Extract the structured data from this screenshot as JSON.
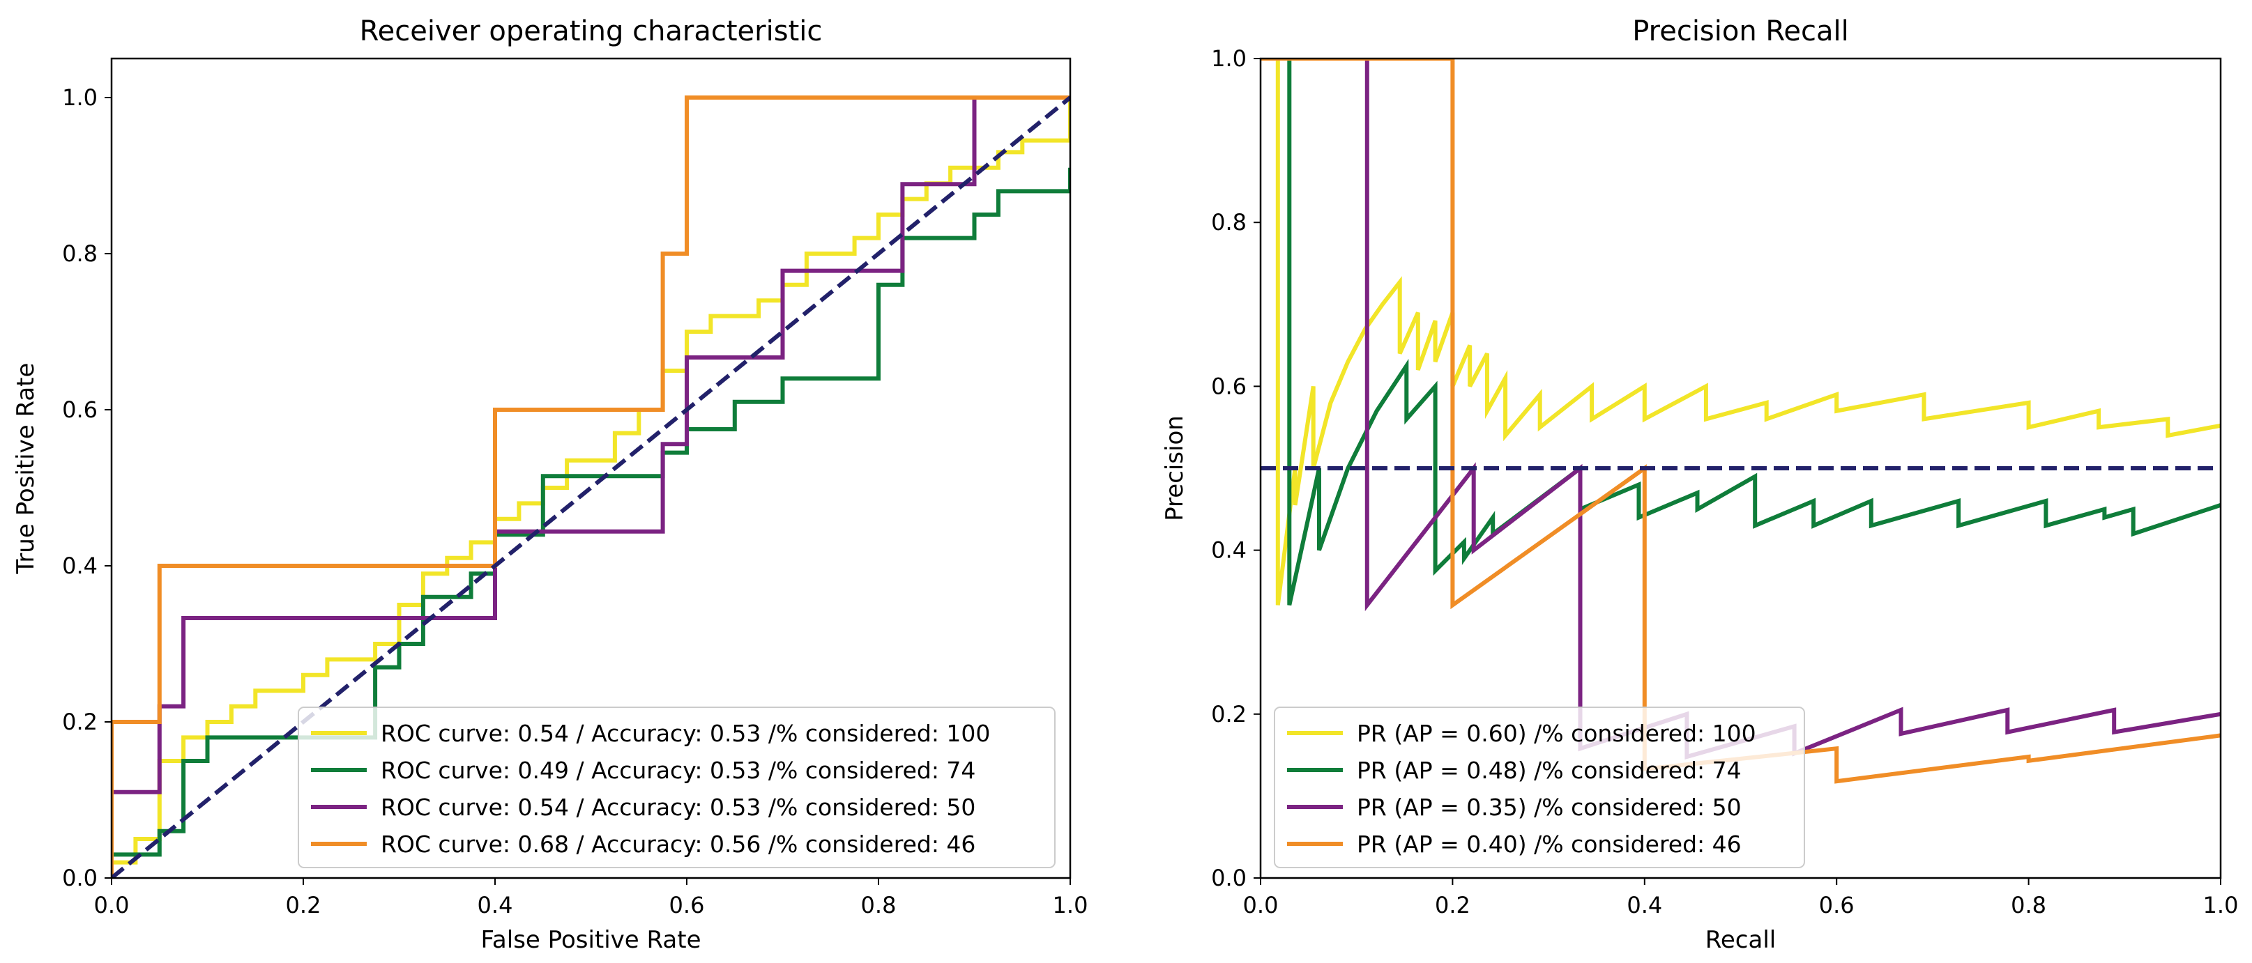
{
  "chart_data": [
    {
      "type": "line",
      "title": "Receiver operating characteristic",
      "xlabel": "False Positive Rate",
      "ylabel": "True Positive Rate",
      "xlim": [
        0,
        1
      ],
      "ylim": [
        0,
        1.05
      ],
      "xticks": [
        "0.0",
        "0.2",
        "0.4",
        "0.6",
        "0.8",
        "1.0"
      ],
      "yticks": [
        "0.0",
        "0.2",
        "0.4",
        "0.6",
        "0.8",
        "1.0"
      ],
      "legend_position": "lower-right",
      "series": [
        {
          "name": "ROC curve: 0.54 / Accuracy: 0.53 /% considered: 100",
          "color": "#f2e528",
          "x": [
            0,
            0,
            0.025,
            0.025,
            0.05,
            0.05,
            0.075,
            0.075,
            0.1,
            0.1,
            0.125,
            0.125,
            0.15,
            0.15,
            0.2,
            0.2,
            0.225,
            0.225,
            0.275,
            0.275,
            0.3,
            0.3,
            0.325,
            0.325,
            0.35,
            0.35,
            0.375,
            0.375,
            0.4,
            0.4,
            0.425,
            0.425,
            0.45,
            0.45,
            0.475,
            0.475,
            0.525,
            0.525,
            0.55,
            0.55,
            0.575,
            0.575,
            0.6,
            0.6,
            0.625,
            0.625,
            0.675,
            0.675,
            0.7,
            0.7,
            0.725,
            0.725,
            0.775,
            0.775,
            0.8,
            0.8,
            0.825,
            0.825,
            0.85,
            0.85,
            0.875,
            0.875,
            0.925,
            0.925,
            0.95,
            0.95,
            1.0,
            1.0
          ],
          "y": [
            0,
            0.02,
            0.02,
            0.05,
            0.05,
            0.15,
            0.15,
            0.18,
            0.18,
            0.2,
            0.2,
            0.22,
            0.22,
            0.24,
            0.24,
            0.26,
            0.26,
            0.28,
            0.28,
            0.3,
            0.3,
            0.35,
            0.35,
            0.39,
            0.39,
            0.41,
            0.41,
            0.43,
            0.43,
            0.46,
            0.46,
            0.48,
            0.48,
            0.5,
            0.5,
            0.535,
            0.535,
            0.57,
            0.57,
            0.6,
            0.6,
            0.65,
            0.65,
            0.7,
            0.7,
            0.72,
            0.72,
            0.74,
            0.74,
            0.76,
            0.76,
            0.8,
            0.8,
            0.82,
            0.82,
            0.85,
            0.85,
            0.87,
            0.87,
            0.89,
            0.89,
            0.91,
            0.91,
            0.93,
            0.93,
            0.945,
            0.945,
            1.0
          ]
        },
        {
          "name": "ROC curve: 0.49 / Accuracy: 0.53 /% considered: 74",
          "color": "#0f7d3a",
          "x": [
            0,
            0,
            0.05,
            0.05,
            0.075,
            0.075,
            0.1,
            0.1,
            0.275,
            0.275,
            0.3,
            0.3,
            0.325,
            0.325,
            0.375,
            0.375,
            0.4,
            0.4,
            0.45,
            0.45,
            0.575,
            0.575,
            0.6,
            0.6,
            0.65,
            0.65,
            0.7,
            0.7,
            0.8,
            0.8,
            0.825,
            0.825,
            0.9,
            0.9,
            0.925,
            0.925,
            1.0,
            1.0
          ],
          "y": [
            0,
            0.03,
            0.03,
            0.06,
            0.06,
            0.15,
            0.15,
            0.18,
            0.18,
            0.27,
            0.27,
            0.3,
            0.3,
            0.36,
            0.36,
            0.39,
            0.39,
            0.44,
            0.44,
            0.515,
            0.515,
            0.545,
            0.545,
            0.575,
            0.575,
            0.61,
            0.61,
            0.64,
            0.64,
            0.76,
            0.76,
            0.82,
            0.82,
            0.85,
            0.85,
            0.88,
            0.88,
            0.91
          ]
        },
        {
          "name": "ROC curve: 0.54 / Accuracy: 0.53 /% considered: 50",
          "color": "#7b2382",
          "x": [
            0,
            0,
            0.05,
            0.05,
            0.075,
            0.075,
            0.4,
            0.4,
            0.575,
            0.575,
            0.6,
            0.6,
            0.7,
            0.7,
            0.825,
            0.825,
            0.9,
            0.9,
            1.0
          ],
          "y": [
            0,
            0.11,
            0.11,
            0.22,
            0.22,
            0.333,
            0.333,
            0.444,
            0.444,
            0.556,
            0.556,
            0.667,
            0.667,
            0.778,
            0.778,
            0.889,
            0.889,
            1.0,
            1.0
          ]
        },
        {
          "name": "ROC curve: 0.68 / Accuracy: 0.56 /% considered: 46",
          "color": "#f08d26",
          "x": [
            0,
            0,
            0.05,
            0.05,
            0.4,
            0.4,
            0.575,
            0.575,
            0.6,
            0.6,
            1.0
          ],
          "y": [
            0,
            0.2,
            0.2,
            0.4,
            0.4,
            0.6,
            0.6,
            0.8,
            0.8,
            1.0,
            1.0
          ]
        }
      ],
      "reference_line": {
        "style": "dashed",
        "color": "#22216a",
        "x": [
          0,
          1
        ],
        "y": [
          0,
          1
        ]
      }
    },
    {
      "type": "line",
      "title": "Precision Recall",
      "xlabel": "Recall",
      "ylabel": "Precision",
      "xlim": [
        0,
        1
      ],
      "ylim": [
        0,
        1
      ],
      "xticks": [
        "0.0",
        "0.2",
        "0.4",
        "0.6",
        "0.8",
        "1.0"
      ],
      "yticks": [
        "0.0",
        "0.2",
        "0.4",
        "0.6",
        "0.8",
        "1.0"
      ],
      "legend_position": "lower-left",
      "series": [
        {
          "name": "PR (AP = 0.60) /% considered: 100",
          "color": "#f2e528",
          "x": [
            0.018,
            0.018,
            0.036,
            0.036,
            0.055,
            0.055,
            0.073,
            0.091,
            0.109,
            0.127,
            0.145,
            0.145,
            0.164,
            0.164,
            0.182,
            0.182,
            0.2,
            0.2,
            0.218,
            0.218,
            0.236,
            0.236,
            0.255,
            0.255,
            0.291,
            0.291,
            0.345,
            0.345,
            0.4,
            0.4,
            0.464,
            0.464,
            0.527,
            0.527,
            0.6,
            0.6,
            0.691,
            0.691,
            0.8,
            0.8,
            0.873,
            0.873,
            0.945,
            0.945,
            1.0
          ],
          "y": [
            1.0,
            0.333,
            0.5,
            0.455,
            0.6,
            0.5,
            0.58,
            0.63,
            0.67,
            0.7,
            0.727,
            0.64,
            0.69,
            0.62,
            0.68,
            0.63,
            0.69,
            0.6,
            0.65,
            0.6,
            0.64,
            0.57,
            0.61,
            0.54,
            0.59,
            0.55,
            0.6,
            0.56,
            0.6,
            0.56,
            0.6,
            0.56,
            0.58,
            0.56,
            0.59,
            0.57,
            0.59,
            0.56,
            0.58,
            0.55,
            0.57,
            0.55,
            0.56,
            0.54,
            0.552
          ]
        },
        {
          "name": "PR (AP = 0.48) /% considered: 74",
          "color": "#0f7d3a",
          "x": [
            0.03,
            0.03,
            0.03,
            0.061,
            0.061,
            0.091,
            0.121,
            0.152,
            0.152,
            0.182,
            0.182,
            0.212,
            0.212,
            0.242,
            0.242,
            0.333,
            0.333,
            0.394,
            0.394,
            0.455,
            0.455,
            0.515,
            0.515,
            0.576,
            0.576,
            0.636,
            0.636,
            0.727,
            0.727,
            0.818,
            0.818,
            0.879,
            0.879,
            0.909,
            0.909,
            1.0
          ],
          "y": [
            1.0,
            0.333,
            0.333,
            0.5,
            0.4,
            0.5,
            0.57,
            0.625,
            0.56,
            0.6,
            0.375,
            0.41,
            0.39,
            0.44,
            0.42,
            0.5,
            0.45,
            0.48,
            0.44,
            0.47,
            0.45,
            0.49,
            0.43,
            0.46,
            0.43,
            0.46,
            0.43,
            0.46,
            0.43,
            0.46,
            0.43,
            0.45,
            0.44,
            0.45,
            0.42,
            0.455
          ]
        },
        {
          "name": "PR (AP = 0.35) /% considered: 50",
          "color": "#7b2382",
          "x": [
            0.111,
            0.111,
            0.222,
            0.222,
            0.222,
            0.333,
            0.333,
            0.444,
            0.444,
            0.556,
            0.556,
            0.667,
            0.667,
            0.778,
            0.778,
            0.889,
            0.889,
            1.0
          ],
          "y": [
            1.0,
            0.333,
            0.5,
            0.4,
            0.4,
            0.5,
            0.158,
            0.2,
            0.148,
            0.185,
            0.152,
            0.205,
            0.176,
            0.205,
            0.178,
            0.205,
            0.178,
            0.2
          ]
        },
        {
          "name": "PR (AP = 0.40) /% considered: 46",
          "color": "#f08d26",
          "x": [
            0.0,
            0.2,
            0.2,
            0.4,
            0.4,
            0.6,
            0.6,
            0.8,
            0.8,
            1.0
          ],
          "y": [
            1.0,
            1.0,
            0.333,
            0.5,
            0.133,
            0.158,
            0.118,
            0.148,
            0.143,
            0.174
          ]
        }
      ],
      "reference_line": {
        "style": "dashed",
        "color": "#22216a",
        "x": [
          0,
          1
        ],
        "y": [
          0.5,
          0.5
        ]
      }
    }
  ]
}
